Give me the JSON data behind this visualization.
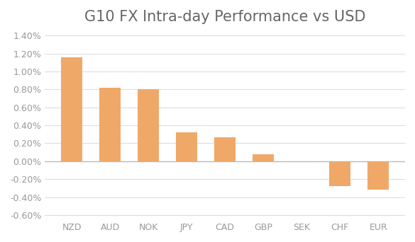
{
  "title": "G10 FX Intra-day Performance vs USD",
  "categories": [
    "NZD",
    "AUD",
    "NOK",
    "JPY",
    "CAD",
    "GBP",
    "SEK",
    "CHF",
    "EUR"
  ],
  "values": [
    1.16,
    0.82,
    0.8,
    0.32,
    0.27,
    0.08,
    0.0,
    -0.28,
    -0.32
  ],
  "bar_color": "#F0A868",
  "ylim_min": -0.65,
  "ylim_max": 1.45,
  "yticks": [
    -0.6,
    -0.4,
    -0.2,
    0.0,
    0.2,
    0.4,
    0.6,
    0.8,
    1.0,
    1.2,
    1.4
  ],
  "ytick_labels": [
    "-0.60%",
    "-0.40%",
    "-0.20%",
    "0.00%",
    "0.20%",
    "0.40%",
    "0.60%",
    "0.80%",
    "1.00%",
    "1.20%",
    "1.40%"
  ],
  "title_fontsize": 15,
  "tick_fontsize": 9,
  "background_color": "#ffffff",
  "grid_color": "#dddddd",
  "axis_label_color": "#999999",
  "title_color": "#666666",
  "zero_line_color": "#bbbbbb"
}
